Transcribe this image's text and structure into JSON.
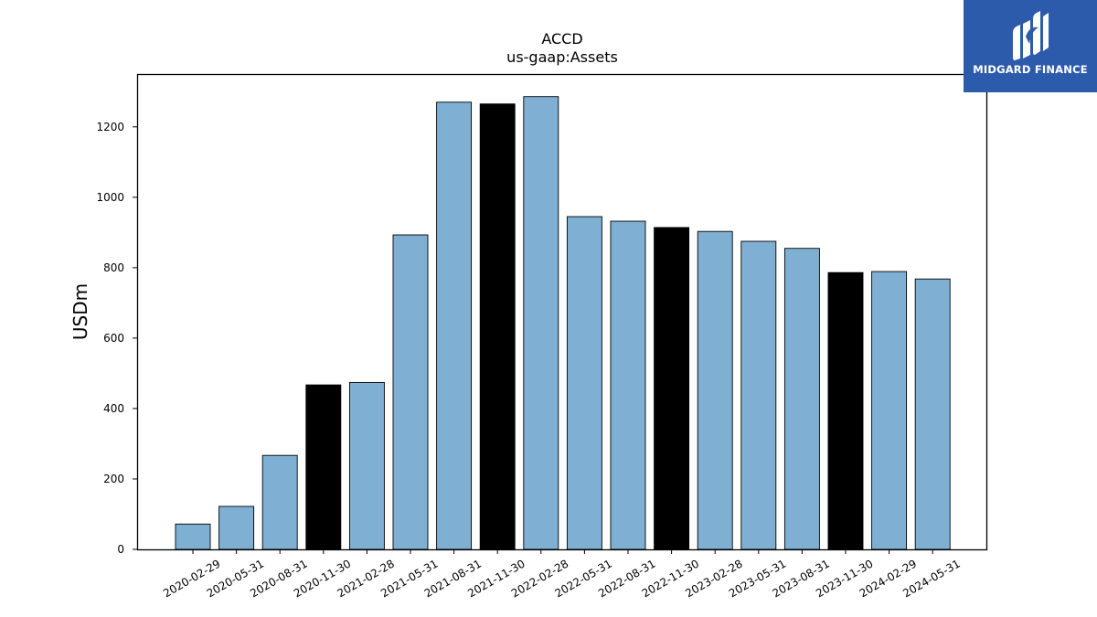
{
  "brand": {
    "name": "MIDGARD FINANCE",
    "bg_color": "#2d5bab",
    "icon": "midgard-logo-icon"
  },
  "chart_data": {
    "type": "bar",
    "title": "ACCD",
    "subtitle": "us-gaap:Assets",
    "xlabel": "",
    "ylabel": "USDm",
    "ylim": [
      0,
      1350
    ],
    "yticks": [
      0,
      200,
      400,
      600,
      800,
      1000,
      1200
    ],
    "grid": false,
    "categories": [
      "2020-02-29",
      "2020-05-31",
      "2020-08-31",
      "2020-11-30",
      "2021-02-28",
      "2021-05-31",
      "2021-08-31",
      "2021-11-30",
      "2022-02-28",
      "2022-05-31",
      "2022-08-31",
      "2022-11-30",
      "2023-02-28",
      "2023-05-31",
      "2023-08-31",
      "2023-11-30",
      "2024-02-29",
      "2024-05-31"
    ],
    "values": [
      72,
      122,
      267,
      467,
      474,
      893,
      1270,
      1265,
      1286,
      945,
      932,
      914,
      903,
      875,
      855,
      786,
      789,
      768
    ],
    "highlight": [
      false,
      false,
      false,
      true,
      false,
      false,
      false,
      true,
      false,
      false,
      false,
      true,
      false,
      false,
      false,
      true,
      false,
      false
    ],
    "colors": {
      "bar": "#7fb0d3",
      "highlight": "#000000",
      "edge": "#000000"
    }
  }
}
